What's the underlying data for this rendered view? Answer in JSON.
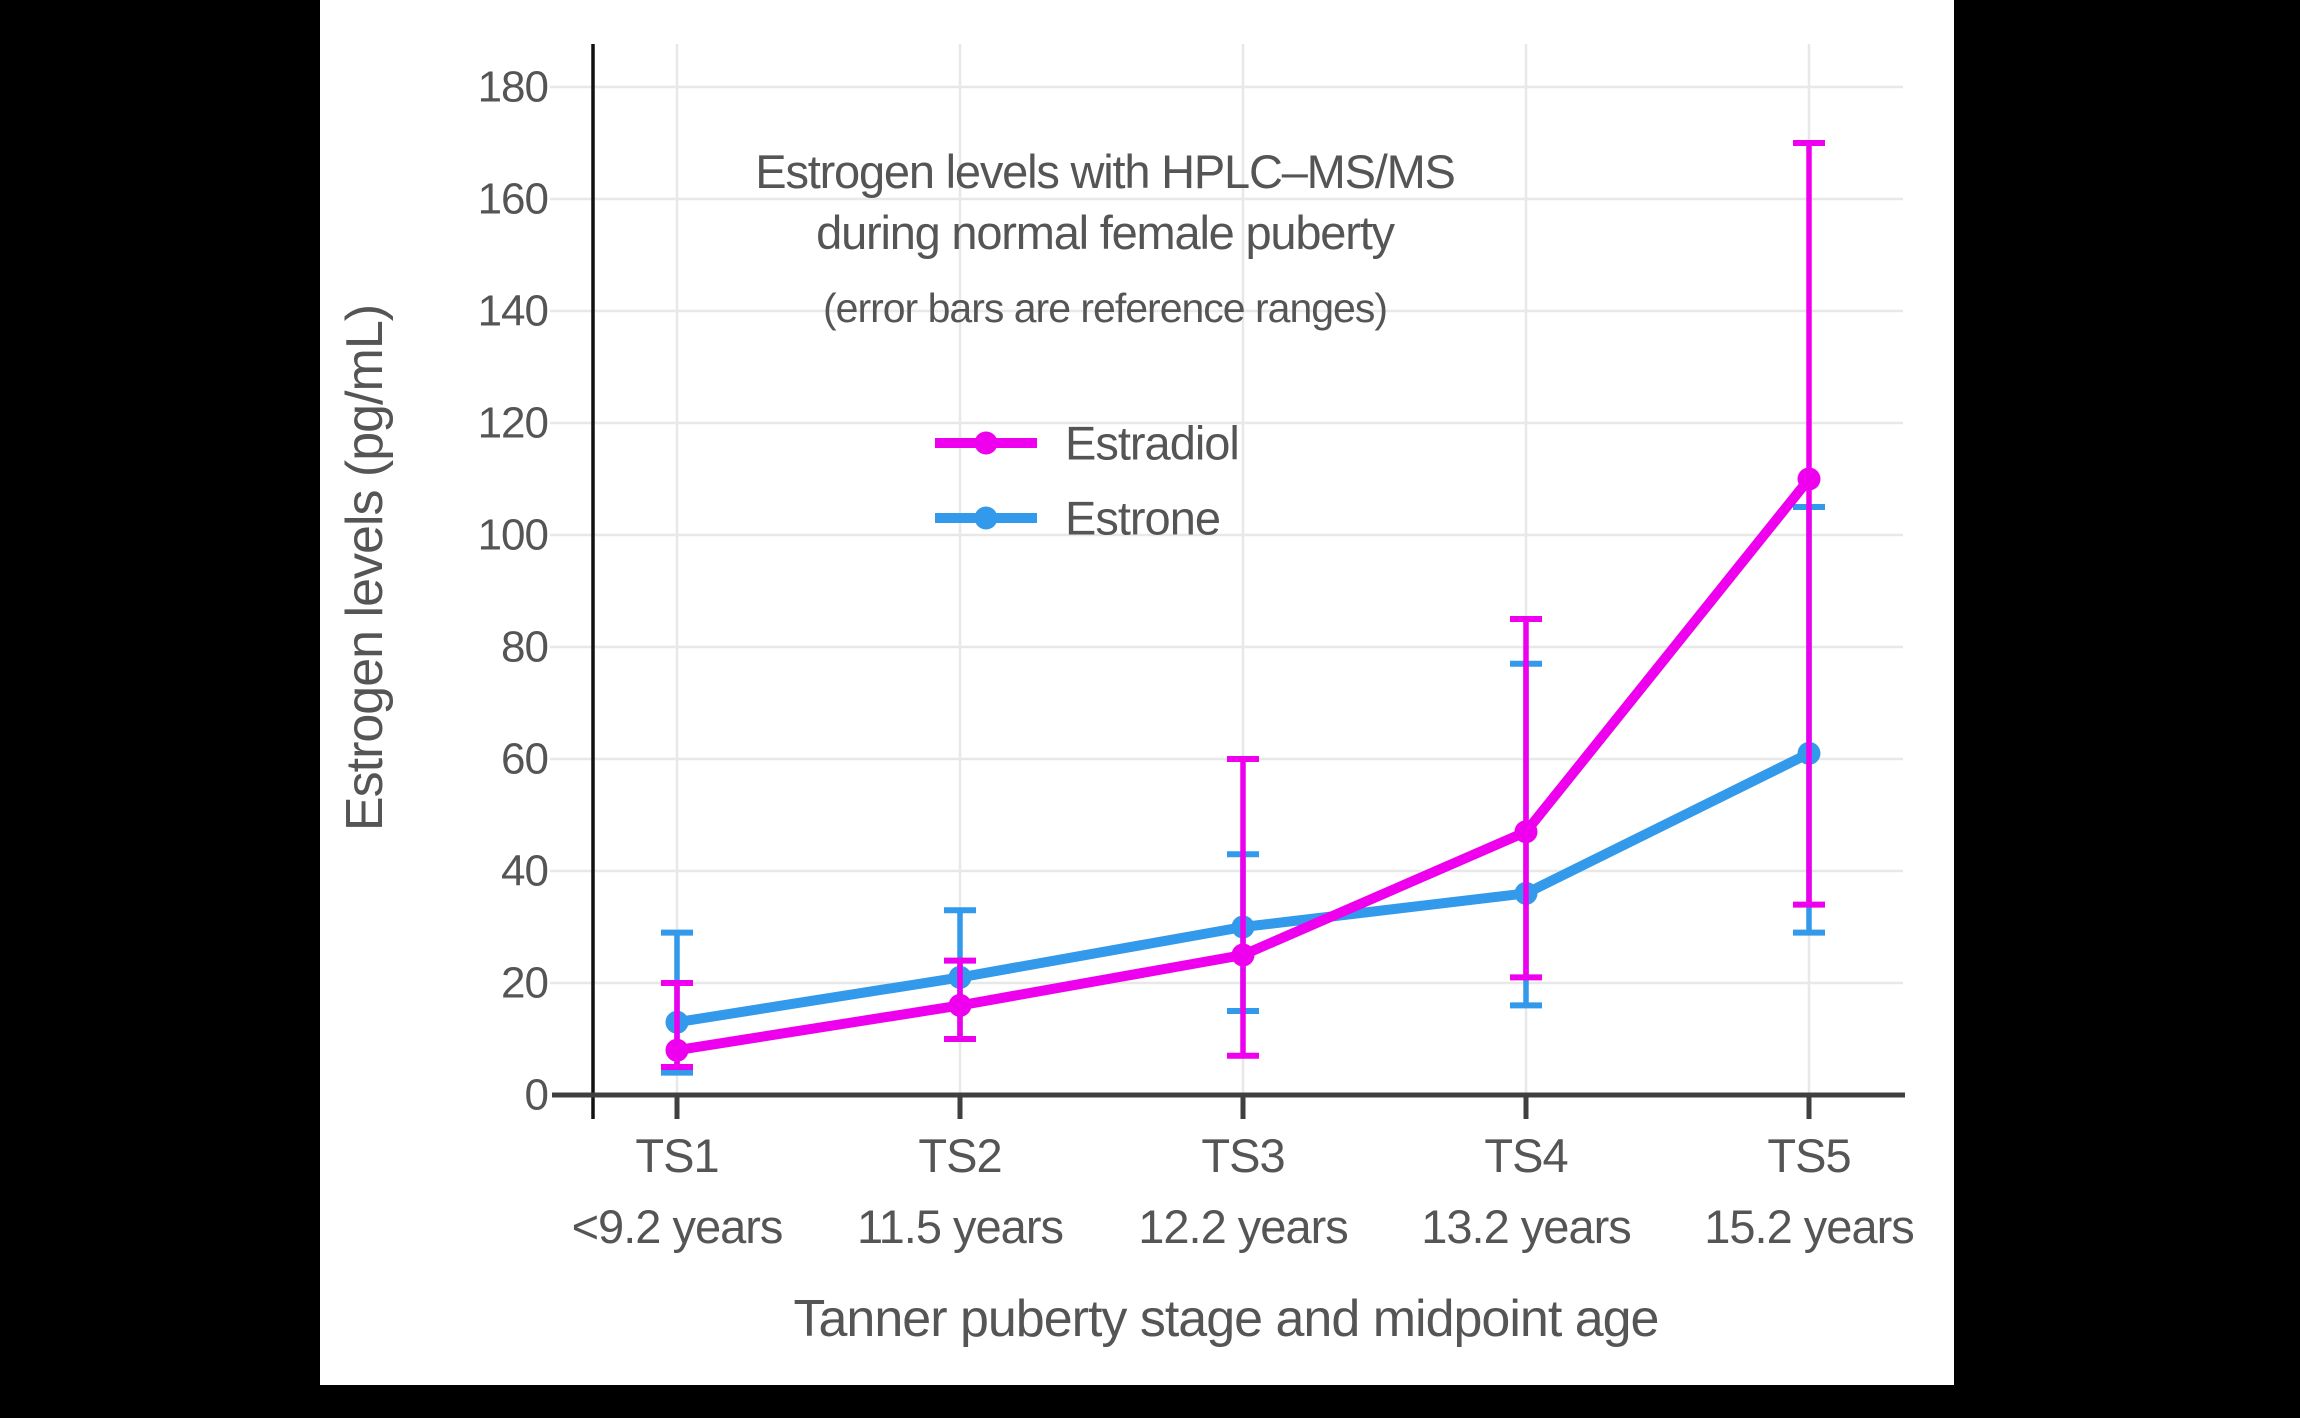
{
  "canvas": {
    "background_color": "#000000",
    "panel_color": "#ffffff",
    "text_color": "#555555",
    "grid_color": "#e8e8e8",
    "x_axis_color": "#3f3f3f",
    "y_axis_color": "#111111"
  },
  "title": {
    "line1": "Estrogen levels with HPLC–MS/MS",
    "line2": "during normal female puberty",
    "subtitle": "(error bars are reference ranges)"
  },
  "chart_data": {
    "type": "line",
    "title": "Estrogen levels with HPLC–MS/MS during normal female puberty",
    "subtitle": "(error bars are reference ranges)",
    "xlabel": "Tanner puberty stage and midpoint age",
    "ylabel": "Estrogen levels (pg/mL)",
    "ylim": [
      0,
      188
    ],
    "y_ticks": [
      0,
      20,
      40,
      60,
      80,
      100,
      120,
      140,
      160,
      180
    ],
    "grid": true,
    "legend_position": "upper-left-inside",
    "error_bars": "reference ranges",
    "categories": [
      "TS1",
      "TS2",
      "TS3",
      "TS4",
      "TS5"
    ],
    "category_sublabels": [
      "<9.2 years",
      "11.5 years",
      "12.2 years",
      "13.2 years",
      "15.2 years"
    ],
    "series": [
      {
        "name": "Estradiol",
        "color": "#ee00ee",
        "values": [
          8,
          16,
          25,
          47,
          110
        ],
        "range_low": [
          5,
          10,
          7,
          21,
          34
        ],
        "range_high": [
          20,
          24,
          60,
          85,
          170
        ]
      },
      {
        "name": "Estrone",
        "color": "#3399eb",
        "values": [
          13,
          21,
          30,
          36,
          61
        ],
        "range_low": [
          4,
          10,
          15,
          16,
          29
        ],
        "range_high": [
          29,
          33,
          43,
          77,
          105
        ]
      }
    ]
  }
}
